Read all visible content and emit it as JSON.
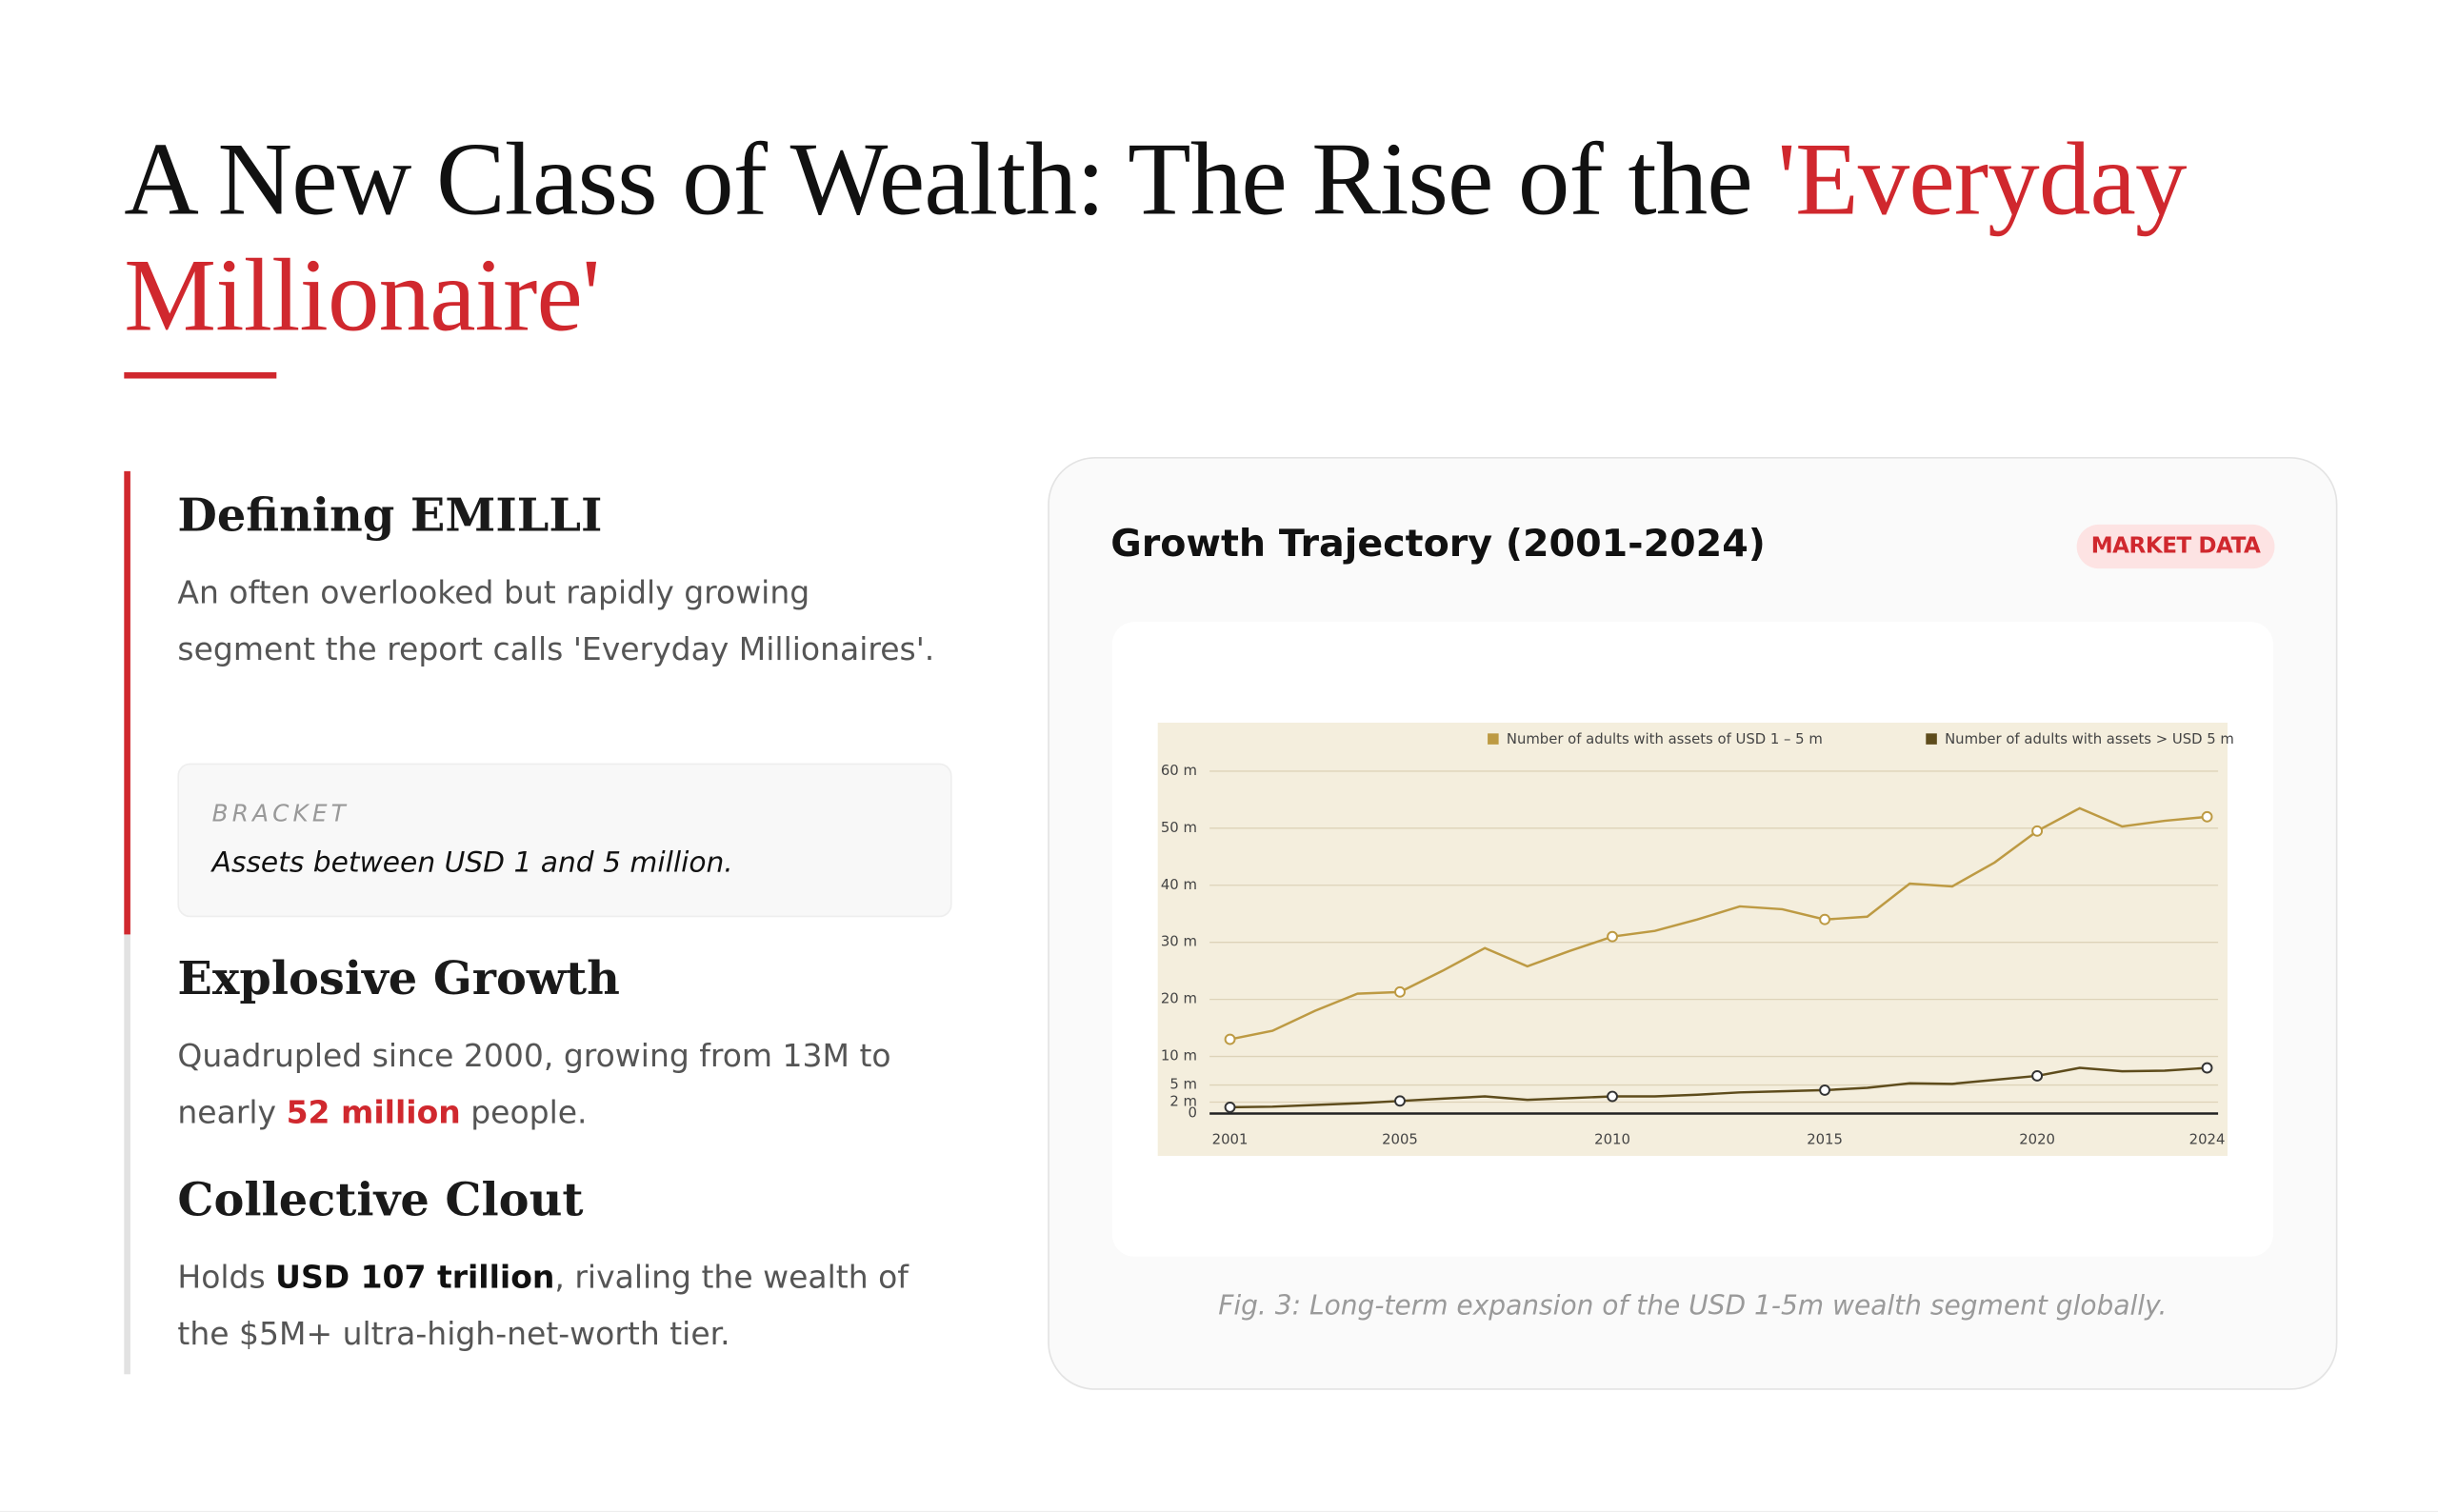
{
  "header": {
    "title": [
      "A New Class of Wealth: The Rise of the ",
      "'Everyday Millionaire'"
    ]
  },
  "sections": [
    {
      "heading": "Defining EMILLI",
      "body": [
        "An often overlooked but rapidly growing segment the report calls 'Everyday Millionaires'."
      ],
      "callout": {
        "label": "BRACKET",
        "text": "Assets between USD 1 and 5 million."
      }
    },
    {
      "heading": "Explosive Growth",
      "body": [
        "Quadrupled since 2000, growing from 13M to nearly ",
        "52 million",
        " people."
      ]
    },
    {
      "heading": "Collective Clout",
      "body": [
        "Holds ",
        "USD 107 trillion",
        ", rivaling the wealth of the $5M+ ultra-high-net-worth tier."
      ]
    }
  ],
  "panel": {
    "title": "Growth Trajectory (2001-2024)",
    "badge": "MARKET DATA",
    "caption": "Fig. 3: Long-term expansion of the USD 1-5m wealth segment globally."
  },
  "chart_data": {
    "type": "line",
    "x": [
      2001,
      2002,
      2003,
      2004,
      2005,
      2006,
      2007,
      2008,
      2009,
      2010,
      2011,
      2012,
      2013,
      2014,
      2015,
      2016,
      2017,
      2018,
      2019,
      2020,
      2021,
      2022,
      2023,
      2024
    ],
    "series": [
      {
        "name": "Number of adults with assets of USD 1 – 5 m",
        "color": "#bd9a43",
        "values": [
          13,
          14.5,
          18,
          21,
          21.3,
          25,
          29,
          25.8,
          28.5,
          31,
          32,
          34,
          36.3,
          35.8,
          34,
          34.5,
          40.3,
          39.8,
          44,
          49.5,
          53.5,
          50.3,
          51.3,
          52
        ]
      },
      {
        "name": "Number of adults with assets > USD 5 m",
        "color": "#5e4c1c",
        "values": [
          1.1,
          1.2,
          1.5,
          1.8,
          2.2,
          2.6,
          3.0,
          2.4,
          2.7,
          3.0,
          3.0,
          3.3,
          3.7,
          3.9,
          4.1,
          4.5,
          5.3,
          5.2,
          5.9,
          6.6,
          8.0,
          7.4,
          7.5,
          8.0
        ]
      }
    ],
    "xlim": [
      2001,
      2024
    ],
    "xticks": [
      2001,
      2005,
      2010,
      2015,
      2020,
      2024
    ],
    "ylim": [
      0,
      60
    ],
    "yticks": [
      0,
      {
        "value": 2,
        "label": "2 m"
      },
      {
        "value": 5,
        "label": "5 m"
      },
      {
        "value": 10,
        "label": "10 m"
      },
      {
        "value": 20,
        "label": "20 m"
      },
      {
        "value": 30,
        "label": "30 m"
      },
      {
        "value": 40,
        "label": "40 m"
      },
      {
        "value": 50,
        "label": "50 m"
      },
      {
        "value": 60,
        "label": "60 m"
      }
    ],
    "grid": true
  }
}
